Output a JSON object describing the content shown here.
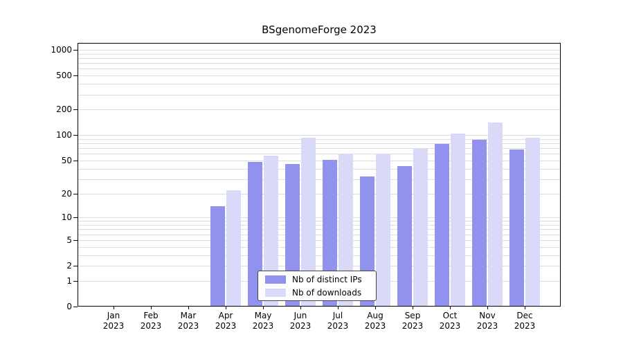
{
  "chart_data": {
    "type": "bar",
    "title": "BSgenomeForge 2023",
    "x_labels": [
      [
        "Jan",
        "2023"
      ],
      [
        "Feb",
        "2023"
      ],
      [
        "Mar",
        "2023"
      ],
      [
        "Apr",
        "2023"
      ],
      [
        "May",
        "2023"
      ],
      [
        "Jun",
        "2023"
      ],
      [
        "Jul",
        "2023"
      ],
      [
        "Aug",
        "2023"
      ],
      [
        "Sep",
        "2023"
      ],
      [
        "Oct",
        "2023"
      ],
      [
        "Nov",
        "2023"
      ],
      [
        "Dec",
        "2023"
      ]
    ],
    "series": [
      {
        "name": "Nb of distinct IPs",
        "color": "#9191ee",
        "values": [
          0,
          0,
          0,
          14,
          48,
          45,
          51,
          32,
          43,
          78,
          88,
          67
        ]
      },
      {
        "name": "Nb of downloads",
        "color": "#d9d9f8",
        "values": [
          0,
          0,
          0,
          22,
          57,
          93,
          60,
          60,
          70,
          105,
          140,
          93
        ]
      }
    ],
    "y_ticks": [
      0,
      1,
      2,
      5,
      10,
      20,
      50,
      100,
      200,
      500,
      1000
    ],
    "y_scale": "log10(x+1)",
    "ylim": [
      0,
      1000
    ],
    "grid": true,
    "legend_position": "bottom-center",
    "colors": {
      "background": "#ffffff",
      "gridline": "#dcdcdc",
      "axis": "#000000",
      "text": "#000000"
    }
  }
}
